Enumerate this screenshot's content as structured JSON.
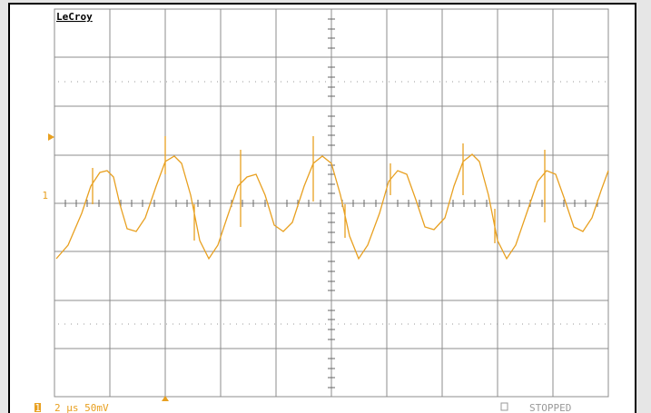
{
  "brand": "LeCroy",
  "channel_marker": "1",
  "status_bar": {
    "channel": "1",
    "settings": "2 µs 50mV",
    "state": "STOPPED"
  }
}
